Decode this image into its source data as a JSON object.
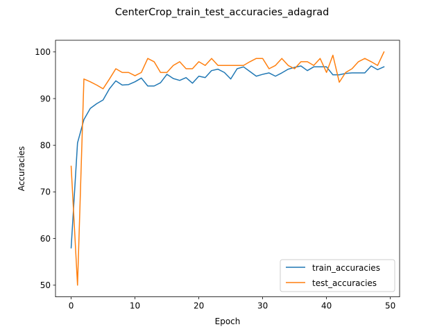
{
  "chart_data": {
    "type": "line",
    "title": "CenterCrop_train_test_accuracies_adagrad",
    "xlabel": "Epoch",
    "ylabel": "Accuracies",
    "xlim": [
      -2.45,
      51.45
    ],
    "ylim": [
      47.5,
      102.5
    ],
    "xticks": [
      0,
      10,
      20,
      30,
      40,
      50
    ],
    "yticks": [
      50,
      60,
      70,
      80,
      90,
      100
    ],
    "grid": false,
    "legend_position": "lower right",
    "x": [
      0,
      1,
      2,
      3,
      4,
      5,
      6,
      7,
      8,
      9,
      10,
      11,
      12,
      13,
      14,
      15,
      16,
      17,
      18,
      19,
      20,
      21,
      22,
      23,
      24,
      25,
      26,
      27,
      28,
      29,
      30,
      31,
      32,
      33,
      34,
      35,
      36,
      37,
      38,
      39,
      40,
      41,
      42,
      43,
      44,
      45,
      46,
      47,
      48,
      49
    ],
    "series": [
      {
        "name": "train_accuracies",
        "color": "#1f77b4",
        "values": [
          58.0,
          80.5,
          85.5,
          87.9,
          88.9,
          89.7,
          92.1,
          93.8,
          92.9,
          93.0,
          93.6,
          94.4,
          92.7,
          92.7,
          93.4,
          95.2,
          94.3,
          93.9,
          94.5,
          93.3,
          94.8,
          94.5,
          96.0,
          96.3,
          95.6,
          94.2,
          96.4,
          96.8,
          95.8,
          94.8,
          95.2,
          95.5,
          94.8,
          95.5,
          96.3,
          96.7,
          97.0,
          96.0,
          96.8,
          96.8,
          96.8,
          95.1,
          95.1,
          95.4,
          95.5,
          95.5,
          95.5,
          97.0,
          96.2,
          96.8
        ]
      },
      {
        "name": "test_accuracies",
        "color": "#ff7f0e",
        "values": [
          75.5,
          50.0,
          94.2,
          93.6,
          92.9,
          92.1,
          94.2,
          96.4,
          95.6,
          95.6,
          94.9,
          95.6,
          98.6,
          97.9,
          95.6,
          95.6,
          97.1,
          97.9,
          96.4,
          96.4,
          97.9,
          97.1,
          98.6,
          97.1,
          97.1,
          97.1,
          97.1,
          97.1,
          97.9,
          98.6,
          98.6,
          96.4,
          97.1,
          98.6,
          97.1,
          96.4,
          97.9,
          97.9,
          97.1,
          98.6,
          95.6,
          99.3,
          93.5,
          95.6,
          96.4,
          97.9,
          98.6,
          97.9,
          97.1,
          100.0
        ]
      }
    ]
  }
}
